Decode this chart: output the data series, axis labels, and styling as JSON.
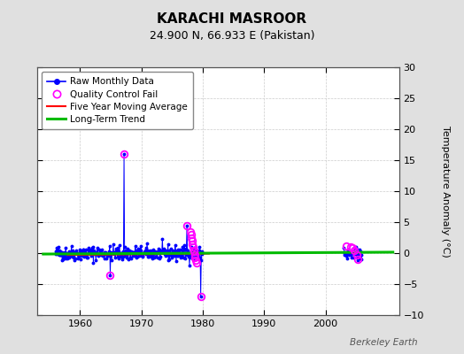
{
  "title": "KARACHI MASROOR",
  "subtitle": "24.900 N, 66.933 E (Pakistan)",
  "ylabel": "Temperature Anomaly (°C)",
  "watermark": "Berkeley Earth",
  "xlim": [
    1953,
    2012
  ],
  "ylim": [
    -10,
    30
  ],
  "yticks": [
    -10,
    -5,
    0,
    5,
    10,
    15,
    20,
    25,
    30
  ],
  "xticks": [
    1960,
    1970,
    1980,
    1990,
    2000
  ],
  "background_color": "#e0e0e0",
  "plot_bg_color": "#ffffff",
  "raw_color": "#0000ff",
  "qc_color": "#ff00ff",
  "ma_color": "#ff0000",
  "trend_color": "#00bb00",
  "figsize": [
    5.24,
    4.0
  ],
  "dpi": 100
}
